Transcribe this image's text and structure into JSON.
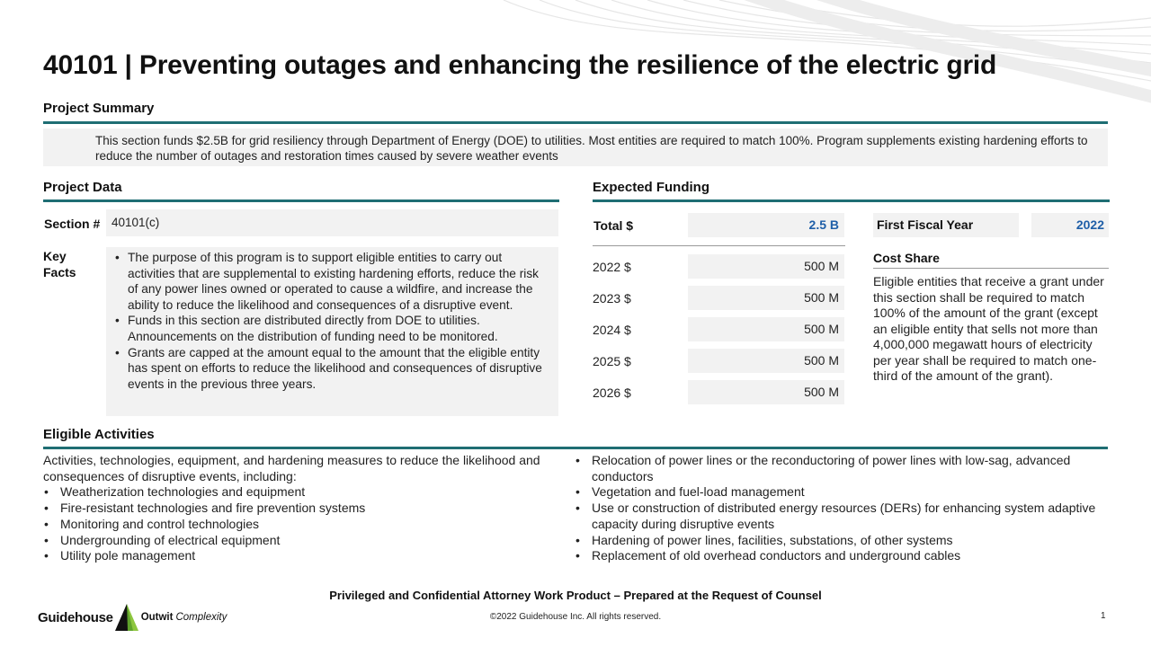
{
  "title": "40101 | Preventing outages and enhancing the resilience of the electric grid",
  "summary": {
    "heading": "Project Summary",
    "text": "This section funds $2.5B for grid resiliency through Department of Energy (DOE) to utilities. Most entities are required to match 100%. Program supplements existing hardening efforts to reduce the number of outages and restoration times caused by severe weather events"
  },
  "project_data": {
    "heading": "Project Data",
    "section_label": "Section #",
    "section_value": "40101(c)",
    "key_facts_label": "Key Facts",
    "key_facts": [
      "The purpose of this program is to support eligible entities to carry out activities that are supplemental to existing hardening efforts, reduce the risk of any power lines owned or operated to cause a wildfire, and increase the ability to reduce the likelihood and consequences of a disruptive event.",
      "Funds in this section are distributed directly from DOE to utilities. Announcements on the distribution of funding need to be monitored.",
      "Grants are capped at the amount equal to the amount that the eligible entity has spent on efforts to reduce the likelihood and consequences of disruptive events in the previous three years."
    ]
  },
  "expected_funding": {
    "heading": "Expected Funding",
    "total_label": "Total $",
    "total_value": "2.5 B",
    "first_fiscal_year_label": "First Fiscal Year",
    "first_fiscal_year_value": "2022",
    "years": [
      {
        "label": "2022 $",
        "value": "500 M"
      },
      {
        "label": "2023 $",
        "value": "500 M"
      },
      {
        "label": "2024 $",
        "value": "500 M"
      },
      {
        "label": "2025 $",
        "value": "500 M"
      },
      {
        "label": "2026 $",
        "value": "500 M"
      }
    ],
    "cost_share_label": "Cost Share",
    "cost_share_text": "Eligible entities that receive a grant under this section shall be required to match 100% of the amount of the grant (except an eligible entity that sells not more than 4,000,000 megawatt hours of electricity per year shall be required to match one-third of the amount of the grant)."
  },
  "eligible_activities": {
    "heading": "Eligible Activities",
    "intro": "Activities, technologies, equipment, and hardening measures to reduce the likelihood and consequences of disruptive events, including:",
    "left_items": [
      "Weatherization technologies and equipment",
      "Fire-resistant technologies and fire prevention systems",
      "Monitoring and control technologies",
      "Undergrounding of electrical equipment",
      "Utility pole management"
    ],
    "right_items": [
      "Relocation of power lines or the reconductoring of power lines with low-sag, advanced conductors",
      "Vegetation and fuel-load management",
      "Use or construction of distributed energy resources (DERs) for enhancing system adaptive capacity during disruptive events",
      "Hardening of power lines, facilities, substations, of other systems",
      "Replacement of old overhead conductors and underground cables"
    ]
  },
  "footer": {
    "confidential": "Privileged and Confidential Attorney Work Product – Prepared at the Request of Counsel",
    "copyright": "©2022 Guidehouse Inc. All rights reserved.",
    "page_number": "1",
    "logo_main": "Guidehouse",
    "logo_sub1": "Outwit",
    "logo_sub2": "Complexity"
  },
  "colors": {
    "accent_rule": "#1f6e73",
    "value_blue": "#1f5fa8",
    "cell_bg": "#f2f2f2",
    "logo_green": "#8dc63f"
  }
}
